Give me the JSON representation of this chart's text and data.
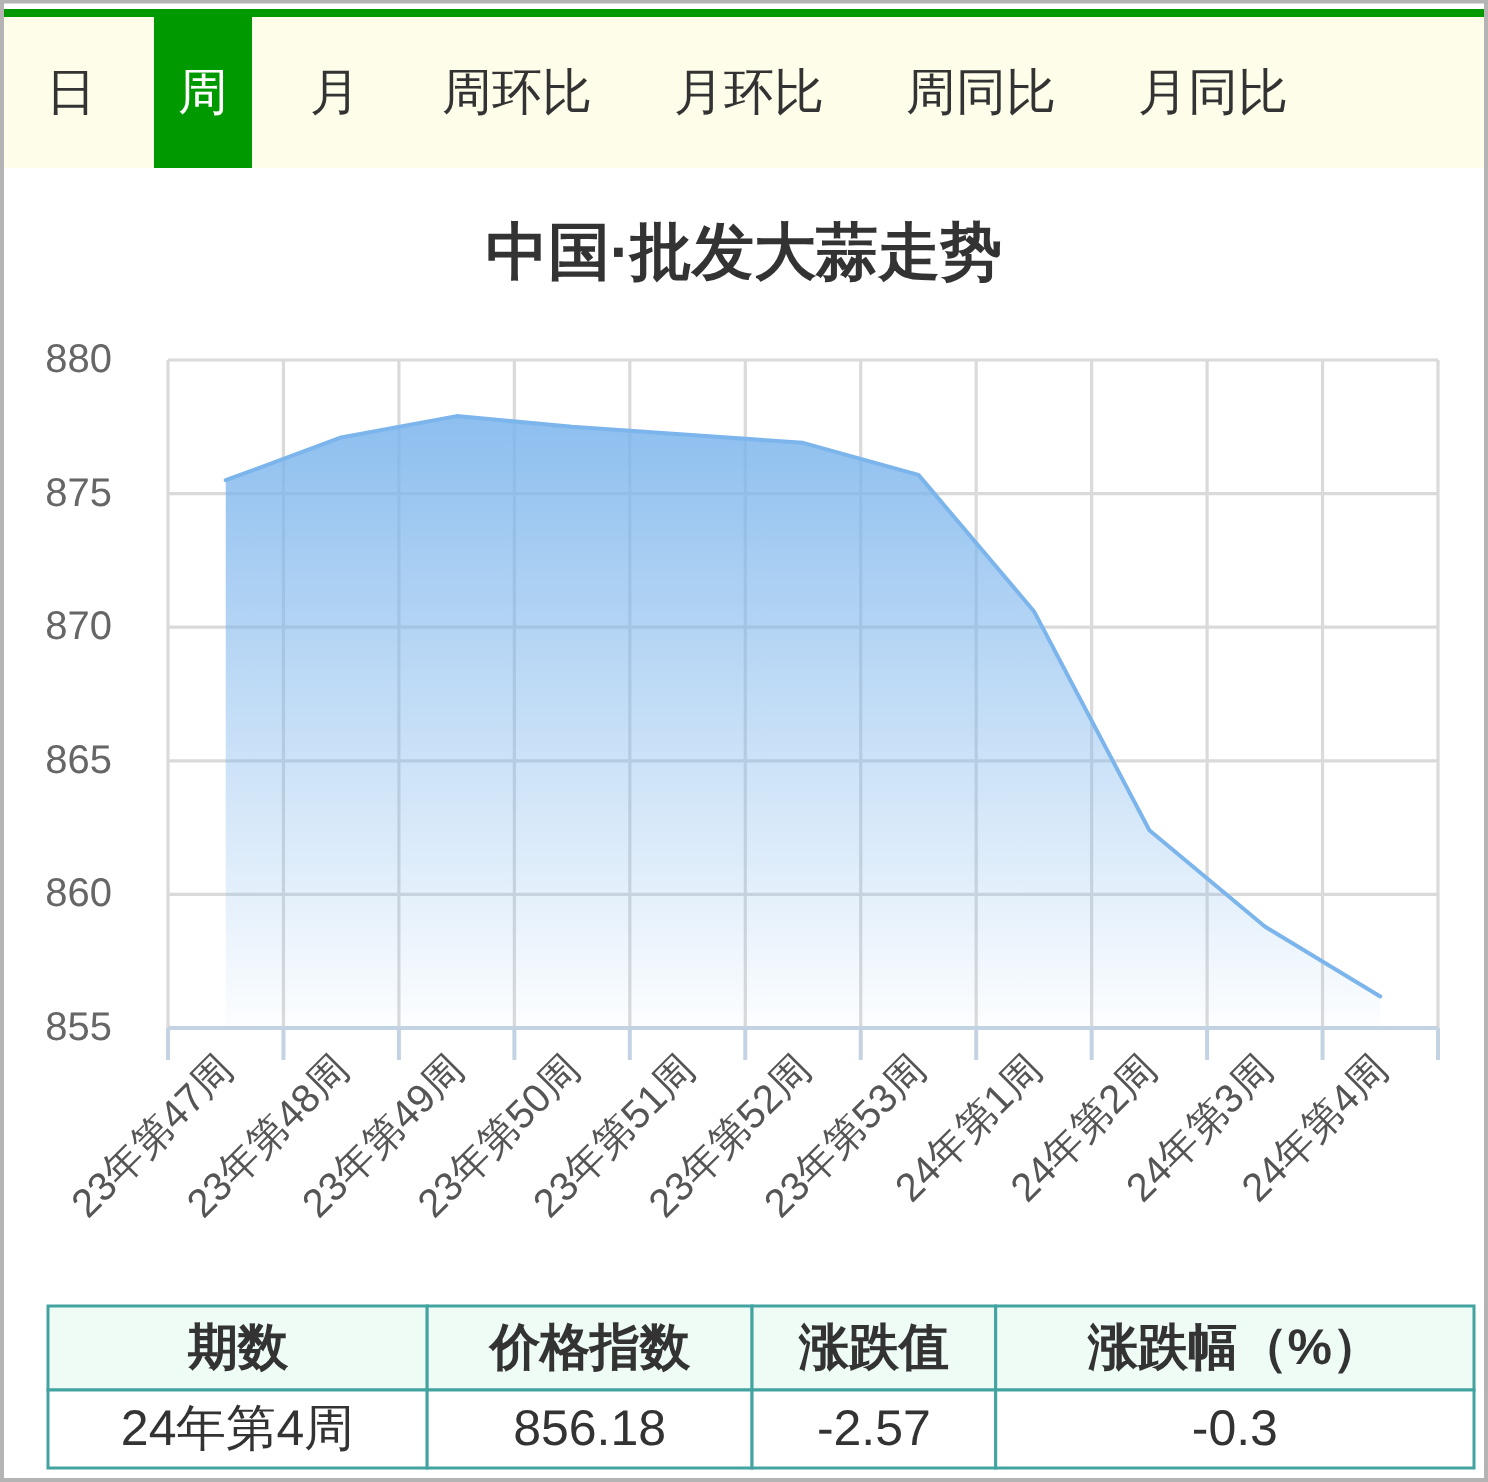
{
  "chart_data": [
    {
      "type": "other",
      "categories": [
        "日",
        "周",
        "月",
        "周环比",
        "月环比",
        "周同比",
        "月同比"
      ],
      "colors": [
        "#fdfde9",
        "#009900",
        "#fdfde9",
        "#fdfde9",
        "#fdfde9",
        "#fdfde9",
        "#fdfde9"
      ]
    },
    {
      "type": "area",
      "title": "中国·批发大蒜走势",
      "categories": [
        "23年第47周",
        "23年第48周",
        "23年第49周",
        "23年第50周",
        "23年第51周",
        "23年第52周",
        "23年第53周",
        "24年第1周",
        "24年第2周",
        "24年第3周",
        "24年第4周"
      ],
      "values": [
        875.5,
        877.1,
        877.9,
        877.5,
        877.2,
        876.9,
        875.7,
        870.6,
        862.4,
        858.8,
        856.18
      ],
      "color": "#7cb5ec",
      "ylim": [
        855,
        880
      ],
      "yticks": [
        855,
        860,
        865,
        870,
        875,
        880
      ],
      "grid": true
    },
    {
      "type": "other",
      "categories": [
        "期数",
        "价格指数",
        "涨跌值",
        "涨跌幅（%）"
      ],
      "annotations": [
        "24年第4周",
        "856.18",
        "-2.57",
        "-0.3"
      ]
    }
  ]
}
